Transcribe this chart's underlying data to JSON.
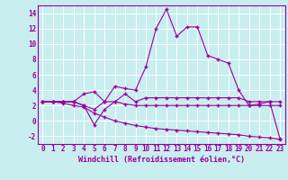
{
  "background_color": "#c8eef0",
  "grid_color": "#ffffff",
  "line_color": "#990099",
  "xlabel": "Windchill (Refroidissement éolien,°C)",
  "ylim": [
    -3,
    15
  ],
  "xlim": [
    -0.5,
    23.5
  ],
  "yticks": [
    -2,
    0,
    2,
    4,
    6,
    8,
    10,
    12,
    14
  ],
  "xticks": [
    0,
    1,
    2,
    3,
    4,
    5,
    6,
    7,
    8,
    9,
    10,
    11,
    12,
    13,
    14,
    15,
    16,
    17,
    18,
    19,
    20,
    21,
    22,
    23
  ],
  "series1_x": [
    0,
    1,
    2,
    3,
    4,
    5,
    6,
    7,
    8,
    9,
    10,
    11,
    12,
    13,
    14,
    15,
    16,
    17,
    18,
    19,
    20,
    21,
    22,
    23
  ],
  "series1_y": [
    2.5,
    2.5,
    2.5,
    2.5,
    3.5,
    3.8,
    2.5,
    4.5,
    4.2,
    4.0,
    7.0,
    12.0,
    14.5,
    11.0,
    12.2,
    12.2,
    8.5,
    8.0,
    7.5,
    4.0,
    2.0,
    2.2,
    2.5,
    -2.3
  ],
  "series2_x": [
    0,
    1,
    2,
    3,
    4,
    5,
    6,
    7,
    8,
    9,
    10,
    11,
    12,
    13,
    14,
    15,
    16,
    17,
    18,
    19,
    20,
    21,
    22,
    23
  ],
  "series2_y": [
    2.5,
    2.5,
    2.5,
    2.5,
    2.0,
    1.5,
    2.5,
    2.5,
    3.5,
    2.5,
    3.0,
    3.0,
    3.0,
    3.0,
    3.0,
    3.0,
    3.0,
    3.0,
    3.0,
    3.0,
    2.5,
    2.5,
    2.5,
    2.5
  ],
  "series3_x": [
    0,
    1,
    2,
    3,
    4,
    5,
    6,
    7,
    8,
    9,
    10,
    11,
    12,
    13,
    14,
    15,
    16,
    17,
    18,
    19,
    20,
    21,
    22,
    23
  ],
  "series3_y": [
    2.5,
    2.5,
    2.5,
    2.5,
    2.0,
    -0.5,
    1.5,
    2.5,
    2.2,
    2.0,
    2.0,
    2.0,
    2.0,
    2.0,
    2.0,
    2.0,
    2.0,
    2.0,
    2.0,
    2.0,
    2.0,
    2.0,
    2.0,
    2.0
  ],
  "series4_x": [
    0,
    1,
    2,
    3,
    4,
    5,
    6,
    7,
    8,
    9,
    10,
    11,
    12,
    13,
    14,
    15,
    16,
    17,
    18,
    19,
    20,
    21,
    22,
    23
  ],
  "series4_y": [
    2.5,
    2.5,
    2.3,
    2.0,
    1.8,
    1.0,
    0.5,
    0.0,
    -0.3,
    -0.6,
    -0.8,
    -1.0,
    -1.1,
    -1.2,
    -1.3,
    -1.4,
    -1.5,
    -1.6,
    -1.7,
    -1.8,
    -2.0,
    -2.1,
    -2.2,
    -2.4
  ],
  "tick_fontsize": 5.5,
  "xlabel_fontsize": 6.0,
  "marker_size": 2.5,
  "line_width": 0.8
}
